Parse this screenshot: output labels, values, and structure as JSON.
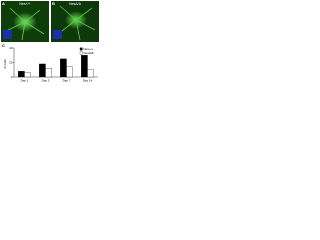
{
  "panels": [
    {
      "letter": "A",
      "label": "Nes+/+"
    },
    {
      "letter": "B",
      "label": "NesΔ/Δ"
    }
  ],
  "chart_data": {
    "type": "bar",
    "letter": "C",
    "ylabel": "% cells",
    "categories": [
      "Day 1",
      "Day 3",
      "Day 7",
      "Day 14"
    ],
    "series": [
      {
        "name": "Nes+/+",
        "color": "#000000",
        "values": [
          8,
          18,
          25,
          30
        ]
      },
      {
        "name": "NesΔ/Δ",
        "color": "#ffffff",
        "values": [
          6,
          12,
          14,
          10
        ]
      }
    ],
    "ylim": [
      0,
      40
    ],
    "yticks": [
      0,
      20,
      40
    ],
    "legend": "upper-right"
  }
}
